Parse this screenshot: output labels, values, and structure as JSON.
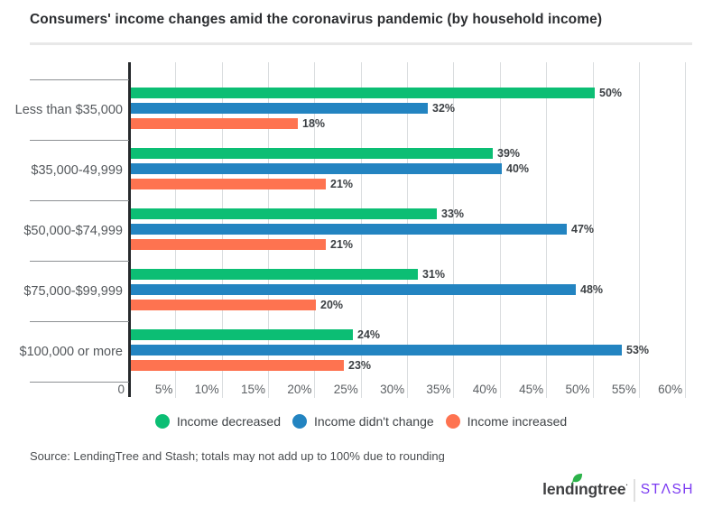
{
  "title": "Consumers' income changes amid the coronavirus pandemic (by household income)",
  "chart_data": {
    "type": "bar",
    "orientation": "horizontal",
    "title": "Consumers' income changes amid the coronavirus pandemic (by household income)",
    "categories": [
      "Less than $35,000",
      "$35,000-49,999",
      "$50,000-$74,999",
      "$75,000-$99,999",
      "$100,000 or more"
    ],
    "series": [
      {
        "name": "Income decreased",
        "color": "#0cbe74",
        "values": [
          50,
          39,
          33,
          31,
          24
        ]
      },
      {
        "name": "Income didn't change",
        "color": "#2384c1",
        "values": [
          32,
          40,
          47,
          48,
          53
        ]
      },
      {
        "name": "Income increased",
        "color": "#fe7350",
        "values": [
          18,
          21,
          21,
          20,
          23
        ]
      }
    ],
    "value_suffix": "%",
    "xlim": [
      0,
      60
    ],
    "x_ticks": [
      "0",
      "5%",
      "10%",
      "15%",
      "20%",
      "25%",
      "30%",
      "35%",
      "40%",
      "45%",
      "50%",
      "55%",
      "60%"
    ],
    "grid": true,
    "legend_position": "bottom"
  },
  "footer": {
    "source": "Source: LendingTree and Stash; totals may not add up to 100% due to rounding"
  },
  "branding": {
    "lendingtree": {
      "pre": "lend",
      "dotted": "ı",
      "post": "ngtree",
      "trademark": "·",
      "color": "#3e3f41",
      "leaf_color": "#2cb34a"
    },
    "stash": {
      "label": "STΛSH",
      "color": "#7b3af2"
    }
  }
}
